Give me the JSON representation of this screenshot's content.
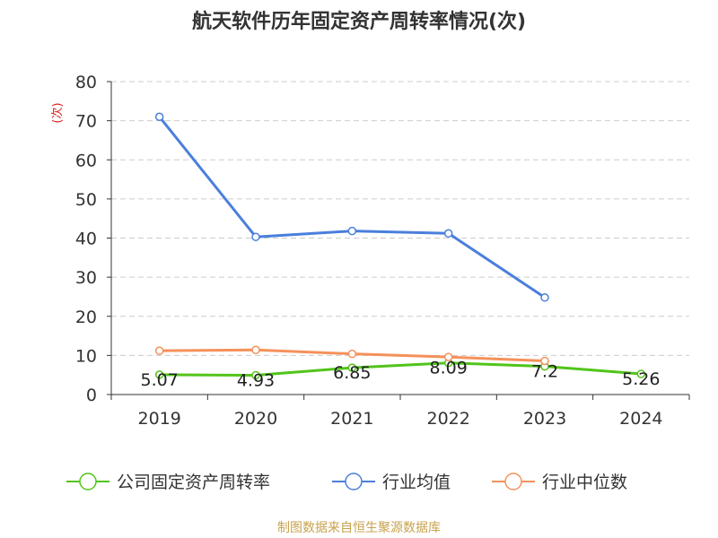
{
  "chart_data": {
    "type": "line",
    "title": "航天软件历年固定资产周转率情况(次)",
    "ylabel": "(次)",
    "ylim": [
      0,
      80
    ],
    "yticks": [
      0,
      10,
      20,
      30,
      40,
      50,
      60,
      70,
      80
    ],
    "categories": [
      "2019",
      "2020",
      "2021",
      "2022",
      "2023",
      "2024"
    ],
    "grid": true,
    "legend_position": "bottom",
    "series": [
      {
        "name": "公司固定资产周转率",
        "color": "#52c41a",
        "values": [
          5.07,
          4.93,
          6.85,
          8.09,
          7.2,
          5.26
        ],
        "labels": [
          "5.07",
          "4.93",
          "6.85",
          "8.09",
          "7.2",
          "5.26"
        ]
      },
      {
        "name": "行业均值",
        "color": "#4a7fdc",
        "values": [
          71.0,
          40.3,
          41.8,
          41.2,
          24.8,
          null
        ]
      },
      {
        "name": "行业中位数",
        "color": "#f5915a",
        "values": [
          11.2,
          11.4,
          10.4,
          9.6,
          8.6,
          null
        ]
      }
    ]
  },
  "source": "制图数据来自恒生聚源数据库"
}
